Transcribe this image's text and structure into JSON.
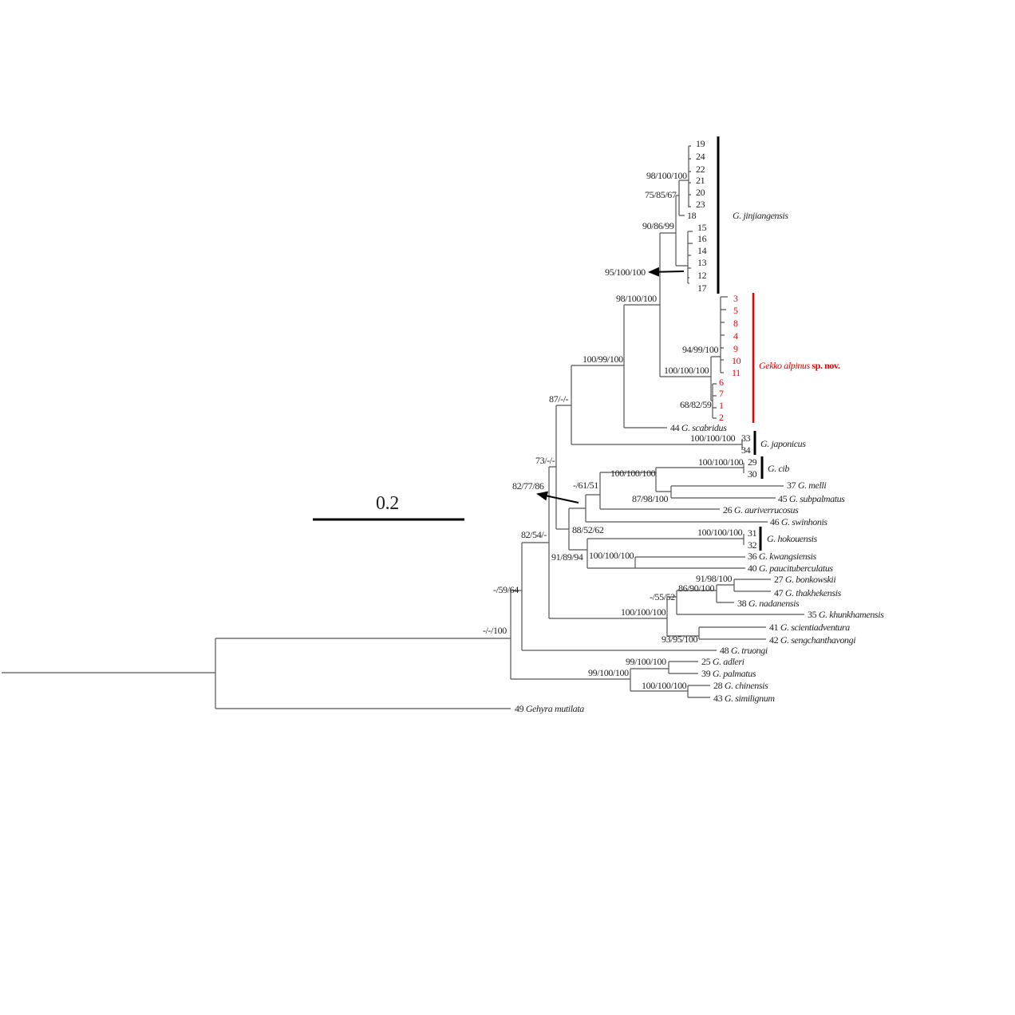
{
  "scale_bar": {
    "label": "0.2"
  },
  "support": {
    "n_jin_a": "98/100/100",
    "n_jin_b": "75/85/67",
    "n_jin_c": "90/86/99",
    "n_jin_d": "95/100/100",
    "n_jin_alp": "98/100/100",
    "n_alp_a": "94/99/100",
    "n_alp_b": "100/100/100",
    "n_alp_c": "68/82/59",
    "n_scab": "100/99/100",
    "n_87": "87/-/-",
    "n_jap": "100/100/100",
    "n_73": "73/-/-",
    "n_8277": "82/77/86",
    "n_6151": "-/61/51",
    "n_cibgrp": "100/100/100",
    "n_cib": "100/100/100",
    "n_87981": "87/98/100",
    "n_8852": "88/52/62",
    "n_9189": "91/89/94",
    "n_hok": "100/100/100",
    "n_kwang": "100/100/100",
    "n_8254": "82/54/-",
    "n_9198": "91/98/100",
    "n_8690": "86/90/100",
    "n_5552": "-/55/52",
    "n_lao": "100/100/100",
    "n_9395": "93/95/100",
    "n_5964": "-/59/64",
    "n_root": "-/-/100",
    "n_adl": "99/100/100",
    "n_outer": "99/100/100",
    "n_chin": "100/100/100"
  },
  "tips": {
    "jin": [
      "19",
      "24",
      "22",
      "21",
      "20",
      "23",
      "18",
      "15",
      "16",
      "14",
      "13",
      "12",
      "17"
    ],
    "alp": [
      "3",
      "5",
      "8",
      "4",
      "9",
      "10",
      "11",
      "6",
      "7",
      "1",
      "2"
    ],
    "jap": [
      "33",
      "34"
    ],
    "cib": [
      "29",
      "30"
    ],
    "hok": [
      "31",
      "32"
    ],
    "species": [
      {
        "num": "44",
        "name": "G. scabridus"
      },
      {
        "num": "37",
        "name": "G. melli"
      },
      {
        "num": "45",
        "name": "G. subpalmatus"
      },
      {
        "num": "26",
        "name": "G. auriverrucosus"
      },
      {
        "num": "46",
        "name": "G. swinhonis"
      },
      {
        "num": "36",
        "name": "G. kwangsiensis"
      },
      {
        "num": "40",
        "name": "G. paucituberculatus"
      },
      {
        "num": "27",
        "name": "G. bonkowskii"
      },
      {
        "num": "47",
        "name": "G. thakhekensis"
      },
      {
        "num": "38",
        "name": "G. nadanensis"
      },
      {
        "num": "35",
        "name": "G. khunkhamensis"
      },
      {
        "num": "41",
        "name": "G. scientiadventura"
      },
      {
        "num": "42",
        "name": "G. sengchanthavongi"
      },
      {
        "num": "48",
        "name": "G. truongi"
      },
      {
        "num": "25",
        "name": "G. adleri"
      },
      {
        "num": "39",
        "name": "G. palmatus"
      },
      {
        "num": "28",
        "name": "G. chinensis"
      },
      {
        "num": "43",
        "name": "G. similignum"
      },
      {
        "num": "49",
        "name": "Gehyra mutilata"
      }
    ]
  },
  "clades": {
    "jinjiangensis": "G. jinjiangensis",
    "alpinus_name": "Gekko alpinus",
    "alpinus_suffix": "sp. nov.",
    "japonicus": "G. japonicus",
    "cib": "G. cib",
    "hokouensis": "G. hokouensis"
  },
  "colors": {
    "new_species": "#e00000",
    "branches": "#555555"
  }
}
